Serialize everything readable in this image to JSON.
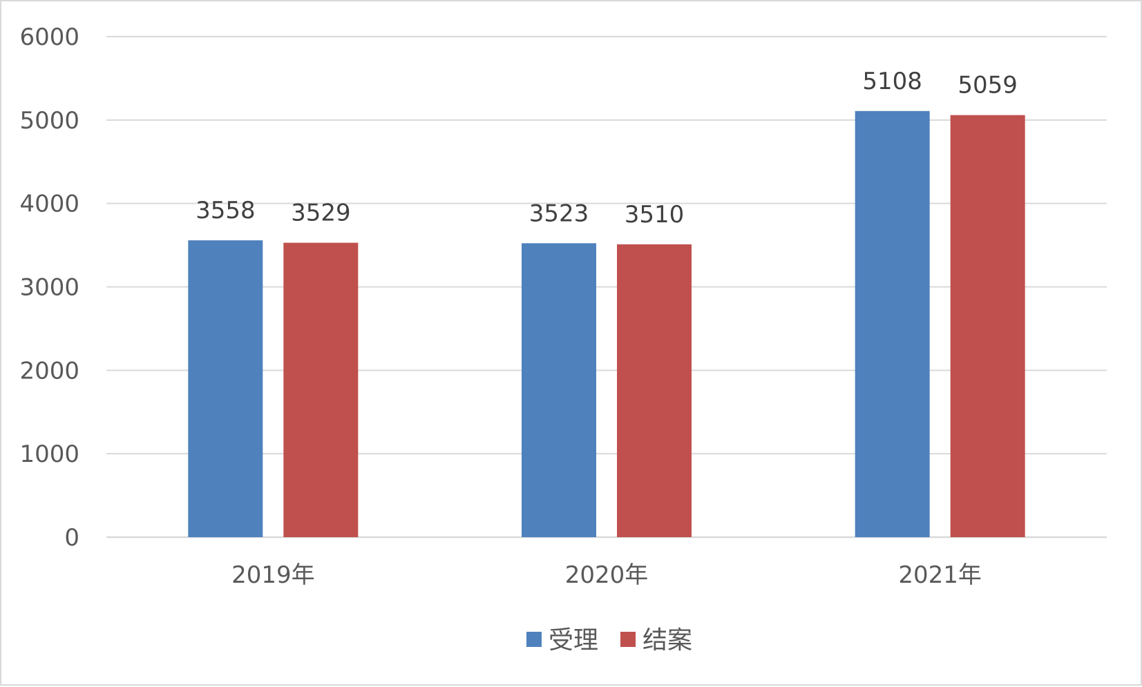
{
  "chart_data": {
    "type": "bar",
    "title": "",
    "xlabel": "",
    "ylabel": "",
    "categories": [
      "2019年",
      "2020年",
      "2021年"
    ],
    "series": [
      {
        "name": "受理",
        "values": [
          3558,
          3523,
          5108
        ],
        "color": "#4f81bd"
      },
      {
        "name": "结案",
        "values": [
          3529,
          3510,
          5059
        ],
        "color": "#c0504d"
      }
    ],
    "ylim": [
      0,
      6000
    ],
    "yticks": [
      0,
      1000,
      2000,
      3000,
      4000,
      5000,
      6000
    ],
    "grid": true,
    "gridline_color": "#d9d9d9",
    "legend_position": "bottom",
    "data_labels": true
  }
}
